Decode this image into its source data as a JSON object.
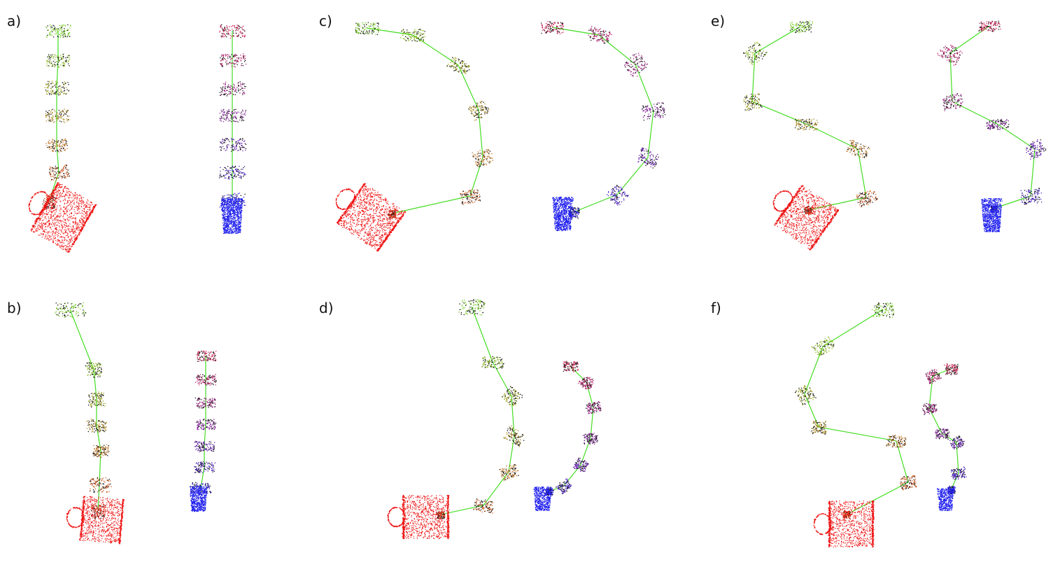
{
  "panels": [
    {
      "label": "a)",
      "layout": "straight-vertical",
      "view": "side"
    },
    {
      "label": "b)",
      "layout": "straight-vertical",
      "view": "top-tilted"
    },
    {
      "label": "c)",
      "layout": "c-curve",
      "view": "side"
    },
    {
      "label": "d)",
      "layout": "c-curve",
      "view": "top-tilted"
    },
    {
      "label": "e)",
      "layout": "s-curve",
      "view": "side"
    },
    {
      "label": "f)",
      "layout": "s-curve",
      "view": "top-tilted"
    }
  ],
  "colors": {
    "mug_red": "#ee1111",
    "cup_blue": "#1a1aee",
    "link_green": "#44dd22",
    "keypoint_start_green": "#77cc22",
    "keypoint_start_magenta": "#cc2255",
    "keypoint_end_orange": "#dd4422",
    "keypoint_end_blue": "#3322dd"
  }
}
